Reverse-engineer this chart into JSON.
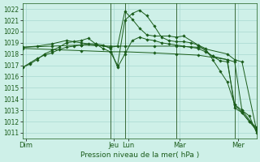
{
  "bg_color": "#cef0e8",
  "grid_color": "#a8d8d0",
  "line_color": "#1a5c1a",
  "marker_color": "#1a5c1a",
  "xlabel_text": "Pression niveau de la mer( hPa )",
  "ylim": [
    1010.5,
    1022.5
  ],
  "yticks": [
    1011,
    1012,
    1013,
    1014,
    1015,
    1016,
    1017,
    1018,
    1019,
    1020,
    1021,
    1022
  ],
  "xlim": [
    0,
    32
  ],
  "xtick_labels": [
    "Dim",
    "Jeu",
    "Lun",
    "Mar",
    "Mer"
  ],
  "xtick_positions": [
    0.5,
    12.5,
    14.5,
    21.5,
    29.5
  ],
  "vline_positions": [
    12,
    14,
    21,
    29
  ],
  "series": [
    {
      "x": [
        0,
        1,
        2,
        3,
        4,
        5,
        6,
        7,
        8,
        9,
        10,
        11,
        12,
        13,
        14,
        15,
        16,
        17,
        18,
        19,
        20,
        21,
        22,
        23,
        24,
        25,
        26,
        27,
        28,
        29,
        30,
        31,
        32
      ],
      "y": [
        1016.8,
        1017.2,
        1017.6,
        1017.9,
        1018.1,
        1018.4,
        1018.6,
        1018.7,
        1018.8,
        1018.9,
        1018.9,
        1018.5,
        1018.2,
        1017.0,
        1021.0,
        1021.6,
        1021.9,
        1021.4,
        1020.5,
        1019.5,
        1019.2,
        1019.1,
        1019.1,
        1019.0,
        1018.8,
        1018.5,
        1017.5,
        1016.5,
        1015.5,
        1013.5,
        1012.8,
        1012.0,
        1011.5
      ]
    },
    {
      "x": [
        0,
        2,
        4,
        6,
        8,
        10,
        12,
        13,
        14,
        15,
        16,
        17,
        18,
        20,
        21,
        22,
        24,
        26,
        28,
        29,
        30,
        31,
        32
      ],
      "y": [
        1018.6,
        1018.7,
        1018.9,
        1019.2,
        1019.0,
        1018.8,
        1018.6,
        1018.7,
        1021.8,
        1021.1,
        1020.3,
        1019.7,
        1019.6,
        1019.6,
        1019.5,
        1019.6,
        1018.8,
        1017.8,
        1017.5,
        1013.2,
        1012.8,
        1012.0,
        1011.2
      ]
    },
    {
      "x": [
        0,
        4,
        8,
        12,
        14,
        18,
        21,
        24,
        28,
        29,
        30,
        32
      ],
      "y": [
        1018.6,
        1018.7,
        1018.8,
        1018.7,
        1018.7,
        1018.7,
        1018.7,
        1018.6,
        1018.0,
        1017.5,
        1017.3,
        1011.2
      ]
    },
    {
      "x": [
        0,
        4,
        8,
        12,
        14,
        18,
        21,
        24,
        28,
        29,
        30,
        32
      ],
      "y": [
        1018.5,
        1018.4,
        1018.3,
        1018.2,
        1018.2,
        1018.1,
        1018.0,
        1017.9,
        1017.5,
        1017.3,
        1013.0,
        1011.3
      ]
    },
    {
      "x": [
        0,
        1,
        2,
        3,
        4,
        5,
        6,
        7,
        8,
        9,
        10,
        11,
        12,
        13,
        14,
        15,
        16,
        17,
        18,
        19,
        20,
        21,
        22,
        23,
        24,
        25,
        26,
        27,
        28,
        29,
        30,
        31,
        32
      ],
      "y": [
        1016.8,
        1017.1,
        1017.5,
        1018.0,
        1018.3,
        1018.6,
        1019.0,
        1019.1,
        1019.2,
        1019.4,
        1018.9,
        1018.8,
        1018.5,
        1016.8,
        1018.0,
        1019.2,
        1019.5,
        1019.3,
        1019.2,
        1019.0,
        1018.9,
        1018.8,
        1018.7,
        1018.6,
        1018.5,
        1018.2,
        1017.8,
        1017.4,
        1017.3,
        1013.5,
        1013.0,
        1012.5,
        1011.0
      ]
    }
  ]
}
